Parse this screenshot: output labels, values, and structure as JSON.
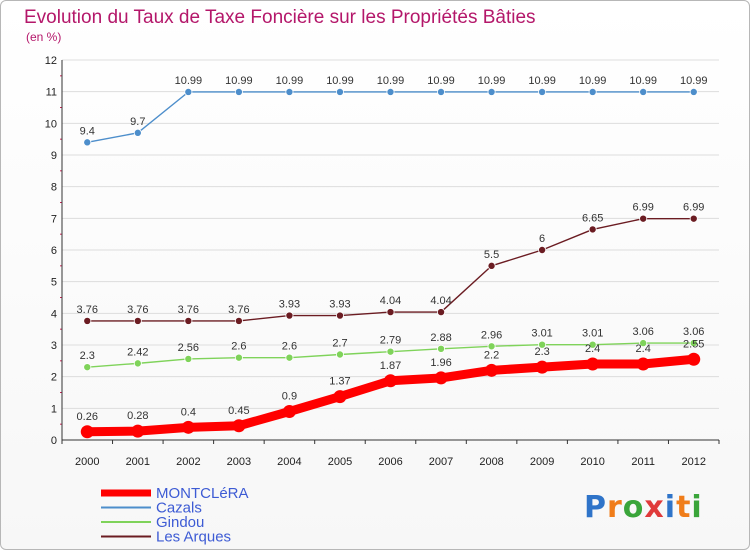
{
  "chart_data": {
    "type": "line",
    "title": "Evolution du Taux de Taxe Foncière sur les Propriétés Bâties",
    "subtitle": "(en %)",
    "x": [
      "2000",
      "2001",
      "2002",
      "2003",
      "2004",
      "2005",
      "2006",
      "2007",
      "2008",
      "2009",
      "2010",
      "2011",
      "2012"
    ],
    "y_ticks": [
      "0",
      "1",
      "2",
      "3",
      "4",
      "5",
      "6",
      "7",
      "8",
      "9",
      "10",
      "11",
      "12"
    ],
    "ylim": [
      0,
      12
    ],
    "series": [
      {
        "name": "MONTCLéRA",
        "color": "#ff0000",
        "values": [
          0.26,
          0.28,
          0.4,
          0.45,
          0.9,
          1.37,
          1.87,
          1.96,
          2.2,
          2.3,
          2.4,
          2.4,
          2.55
        ],
        "labels": [
          "0.26",
          "0.28",
          "0.4",
          "0.45",
          "0.9",
          "1.37",
          "1.87",
          "1.96",
          "2.2",
          "2.3",
          "2.4",
          "2.4",
          "2.55"
        ]
      },
      {
        "name": "Cazals",
        "color": "#4d8ecb",
        "values": [
          9.4,
          9.7,
          10.99,
          10.99,
          10.99,
          10.99,
          10.99,
          10.99,
          10.99,
          10.99,
          10.99,
          10.99,
          10.99
        ],
        "labels": [
          "9.4",
          "9.7",
          "10.99",
          "10.99",
          "10.99",
          "10.99",
          "10.99",
          "10.99",
          "10.99",
          "10.99",
          "10.99",
          "10.99",
          "10.99"
        ]
      },
      {
        "name": "Gindou",
        "color": "#7fd35a",
        "values": [
          2.3,
          2.42,
          2.56,
          2.6,
          2.6,
          2.7,
          2.79,
          2.88,
          2.96,
          3.01,
          3.01,
          3.06,
          3.06
        ],
        "labels": [
          "2.3",
          "2.42",
          "2.56",
          "2.6",
          "2.6",
          "2.7",
          "2.79",
          "2.88",
          "2.96",
          "3.01",
          "3.01",
          "3.06",
          "3.06"
        ]
      },
      {
        "name": "Les Arques",
        "color": "#6b1c22",
        "values": [
          3.76,
          3.76,
          3.76,
          3.76,
          3.93,
          3.93,
          4.04,
          4.04,
          5.5,
          6,
          6.65,
          6.99,
          6.99
        ],
        "labels": [
          "3.76",
          "3.76",
          "3.76",
          "3.76",
          "3.93",
          "3.93",
          "4.04",
          "4.04",
          "5.5",
          "6",
          "6.65",
          "6.99",
          "6.99"
        ]
      }
    ],
    "legend_position": "bottom-left"
  },
  "branding": {
    "logo_text": "Proxiti",
    "logo_colors": [
      "#2f74c9",
      "#f07d1a",
      "#3aa53a",
      "#e03a3a",
      "#2f74c9",
      "#f07d1a",
      "#3aa53a"
    ]
  }
}
